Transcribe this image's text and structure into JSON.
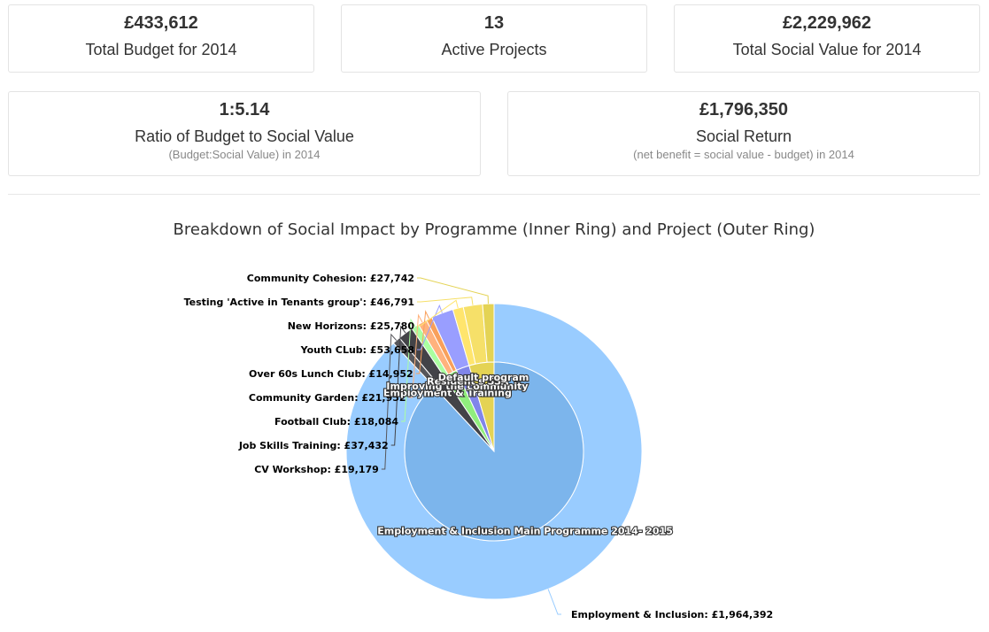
{
  "stats": {
    "total_budget": {
      "value": "£433,612",
      "label": "Total Budget for 2014"
    },
    "active_projects": {
      "value": "13",
      "label": "Active Projects"
    },
    "total_social_value": {
      "value": "£2,229,962",
      "label": "Total Social Value for 2014"
    },
    "ratio": {
      "value": "1:5.14",
      "label": "Ratio of Budget to Social Value",
      "sub": "(Budget:Social Value) in 2014"
    },
    "social_return": {
      "value": "£1,796,350",
      "label": "Social Return",
      "sub": "(net benefit = social value - budget) in 2014"
    }
  },
  "chart_data": {
    "type": "pie",
    "title": "Breakdown of Social Impact by Programme (Inner Ring) and Project (Outer Ring)",
    "inner_ring": [
      {
        "name": "Employment & Inclusion Main Programme 2014- 2015",
        "value": 1964392,
        "color": "#7cb5ec"
      },
      {
        "name": "Employment & Training",
        "value": 56611,
        "color": "#434348"
      },
      {
        "name": "Improving the community",
        "value": 54988,
        "color": "#90ed7d"
      },
      {
        "name": "Resident's SSA",
        "value": 53658,
        "color": "#8085e9"
      },
      {
        "name": "Default program",
        "value": 100313,
        "color": "#e4d354"
      }
    ],
    "outer_ring": [
      {
        "name": "Employment & Inclusion",
        "value": 1964392,
        "label": "Employment & Inclusion: £1,964,392",
        "color": "#99ccff"
      },
      {
        "name": "CV Workshop",
        "value": 19179,
        "label": "CV Workshop: £19,179",
        "color": "#56565b"
      },
      {
        "name": "Job Skills Training",
        "value": 37432,
        "label": "Job Skills Training: £37,432",
        "color": "#434348"
      },
      {
        "name": "Football Club",
        "value": 18084,
        "label": "Football Club: £18,084",
        "color": "#aaffa0"
      },
      {
        "name": "Community Garden",
        "value": 21952,
        "label": "Community Garden: £21,952",
        "color": "#ffb27d"
      },
      {
        "name": "Over 60s Lunch Club",
        "value": 14952,
        "label": "Over 60s Lunch Club: £14,952",
        "color": "#f9a05b"
      },
      {
        "name": "Youth CLub",
        "value": 53658,
        "label": "Youth CLub: £53,658",
        "color": "#999eff"
      },
      {
        "name": "New Horizons",
        "value": 25780,
        "label": "New Horizons: £25,780",
        "color": "#ffe56d"
      },
      {
        "name": "Testing 'Active in Tenants group'",
        "value": 46791,
        "label": "Testing 'Active in Tenants group': £46,791",
        "color": "#f6e069"
      },
      {
        "name": "Community Cohesion",
        "value": 27742,
        "label": "Community Cohesion: £27,742",
        "color": "#e4d354"
      }
    ]
  }
}
